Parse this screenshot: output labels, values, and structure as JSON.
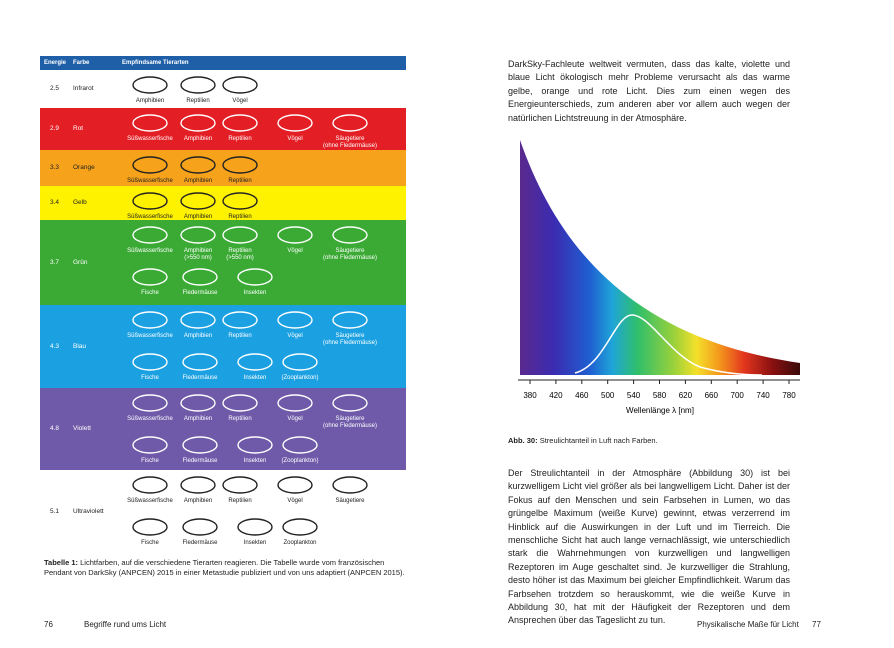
{
  "table": {
    "headers": [
      "Energie",
      "Farbe",
      "Empfindsame Tierarten"
    ],
    "rows": [
      {
        "energy": 2.5,
        "color_name": "Infrarot",
        "background": "#ffffff",
        "text_color": "#222222",
        "animals": [
          [
            "Amphibien",
            "Reptilien",
            "Vögel"
          ]
        ]
      },
      {
        "energy": 2.9,
        "color_name": "Rot",
        "background": "#e31e24",
        "text_color": "#ffffff",
        "animals": [
          [
            "Süßwasserfische",
            "Amphibien",
            "Reptilien",
            "Vögel",
            "Säugetiere\n(ohne Fledermäuse)"
          ]
        ]
      },
      {
        "energy": 3.3,
        "color_name": "Orange",
        "background": "#f7a21b",
        "text_color": "#222222",
        "animals": [
          [
            "Süßwasserfische",
            "Amphibien",
            "Reptilien"
          ]
        ]
      },
      {
        "energy": 3.4,
        "color_name": "Gelb",
        "background": "#fff200",
        "text_color": "#222222",
        "animals": [
          [
            "Süßwasserfische",
            "Amphibien",
            "Reptilien"
          ]
        ]
      },
      {
        "energy": 3.7,
        "color_name": "Grün",
        "background": "#3aaa35",
        "text_color": "#ffffff",
        "animals": [
          [
            "Süßwasserfische",
            "Amphibien\n(>550 nm)",
            "Reptilien\n(>550 nm)",
            "Vögel",
            "Säugetiere\n(ohne Fledermäuse)"
          ],
          [
            "Fische",
            "Fledermäuse",
            "Insekten"
          ]
        ]
      },
      {
        "energy": 4.3,
        "color_name": "Blau",
        "background": "#1ba1e2",
        "text_color": "#ffffff",
        "animals": [
          [
            "Süßwasserfische",
            "Amphibien",
            "Reptilien",
            "Vögel",
            "Säugetiere\n(ohne Fledermäuse)"
          ],
          [
            "Fische",
            "Fledermäuse",
            "Insekten",
            "(Zooplankton)"
          ]
        ]
      },
      {
        "energy": 4.8,
        "color_name": "Violett",
        "background": "#6e5aa8",
        "text_color": "#ffffff",
        "animals": [
          [
            "Süßwasserfische",
            "Amphibien",
            "Reptilien",
            "Vögel",
            "Säugetiere\n(ohne Fledermäuse)"
          ],
          [
            "Fische",
            "Fledermäuse",
            "Insekten",
            "(Zooplankton)"
          ]
        ]
      },
      {
        "energy": 5.1,
        "color_name": "Ultraviolett",
        "background": "#ffffff",
        "text_color": "#222222",
        "animals": [
          [
            "Süßwasserfische",
            "Amphibien",
            "Reptilien",
            "Vögel",
            "Säugetiere"
          ],
          [
            "Fische",
            "Fledermäuse",
            "Insekten",
            "Zooplankton"
          ]
        ]
      }
    ],
    "caption_label": "Tabelle 1:",
    "caption": "Lichtfarben, auf die verschiedene Tierarten reagieren. Die Tabelle wurde vom französischen Pendant von DarkSky (ANPCEN) 2015 in einer Metastudie publiziert und von uns adaptiert (ANPCEN 2015)."
  },
  "paragraphs": [
    "DarkSky-Fachleute weltweit vermuten, dass das kalte, violette und blaue Licht ökologisch mehr Probleme verursacht als das warme gelbe, orange und rote Licht. Dies zum einen wegen des Energieunterschieds, zum anderen aber vor allem auch wegen der natürlichen Lichtstreuung in der Atmosphäre.",
    "Der Streulichtanteil in der Atmosphäre (Abbildung 30) ist bei kurzwelligem Licht viel größer als bei langwelligem Licht. Daher ist der Fokus auf den Menschen und sein Farbsehen in Lumen, wo das grüngelbe Maximum (weiße Kurve) gewinnt, etwas verzerrend im Hinblick auf die Auswirkungen in der Luft und im Tierreich. Die menschliche Sicht hat auch lange vernachlässigt, wie unterschiedlich stark die Wahrnehmungen von kurzwelligen und langwelligen Rezeptoren im Auge geschaltet sind. Je kurzwelliger die Strahlung, desto höher ist das Maximum bei gleicher Empfindlichkeit. Warum das Farbsehen trotzdem so herauskommt, wie die weiße Kurve in Abbildung 30, hat mit der Häufigkeit der Rezeptoren und dem Ansprechen über das Tageslicht zu tun."
  ],
  "figure": {
    "xticks": [
      380,
      420,
      460,
      500,
      540,
      580,
      620,
      660,
      700,
      740,
      780
    ],
    "xlabel": "Wellenlänge λ [nm]",
    "caption_label": "Abb. 30:",
    "caption": "Streulichtanteil in Luft nach Farben."
  },
  "footer": {
    "left_page": "76",
    "left_title": "Begriffe rund ums Licht",
    "right_title": "Physikalische Maße für Licht",
    "right_page": "77"
  }
}
